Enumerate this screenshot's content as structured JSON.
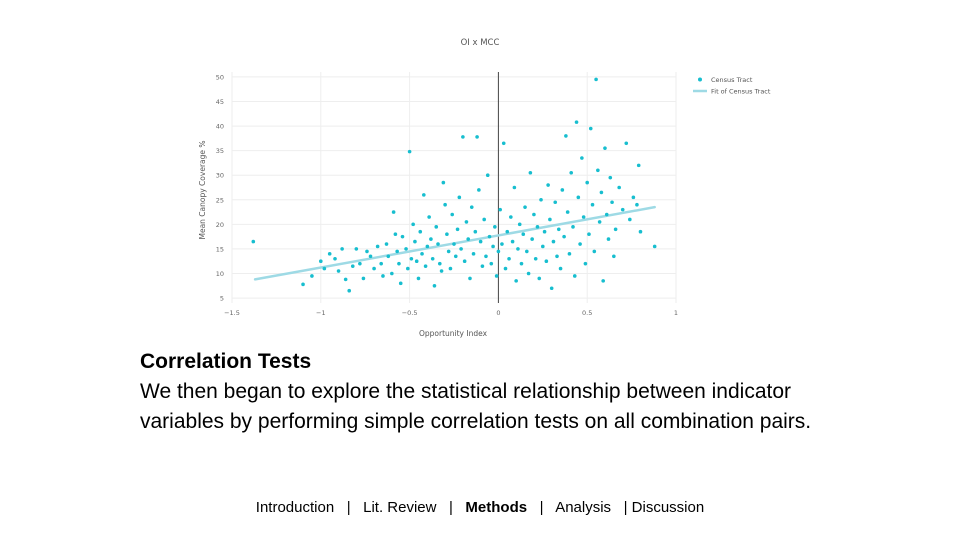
{
  "chart_data": {
    "type": "scatter",
    "title": "OI x MCC",
    "xlabel": "Opportunity Index",
    "ylabel": "Mean Canopy Coverage %",
    "xlim": [
      -1.5,
      1
    ],
    "ylim": [
      4,
      51
    ],
    "x_ticks": [
      "−1.5",
      "−1",
      "−0.5",
      "0",
      "0.5",
      "1"
    ],
    "x_tick_values": [
      -1.5,
      -1,
      -0.5,
      0,
      0.5,
      1
    ],
    "y_ticks": [
      "5",
      "10",
      "15",
      "20",
      "25",
      "30",
      "35",
      "40",
      "45",
      "50"
    ],
    "y_tick_values": [
      5,
      10,
      15,
      20,
      25,
      30,
      35,
      40,
      45,
      50
    ],
    "grid": true,
    "legend_position": "top-right",
    "series": [
      {
        "name": "Census Tract",
        "kind": "scatter",
        "color": "#17becf",
        "points": [
          [
            -1.38,
            16.5
          ],
          [
            -1.1,
            7.8
          ],
          [
            -1.05,
            9.5
          ],
          [
            -1.0,
            12.5
          ],
          [
            -0.98,
            11.0
          ],
          [
            -0.95,
            14.0
          ],
          [
            -0.92,
            13.0
          ],
          [
            -0.9,
            10.5
          ],
          [
            -0.88,
            15.0
          ],
          [
            -0.86,
            8.8
          ],
          [
            -0.84,
            6.5
          ],
          [
            -0.82,
            11.5
          ],
          [
            -0.8,
            15.0
          ],
          [
            -0.78,
            12.0
          ],
          [
            -0.76,
            9.0
          ],
          [
            -0.74,
            14.5
          ],
          [
            -0.72,
            13.5
          ],
          [
            -0.7,
            11.0
          ],
          [
            -0.68,
            15.5
          ],
          [
            -0.66,
            12.0
          ],
          [
            -0.65,
            9.5
          ],
          [
            -0.63,
            16.0
          ],
          [
            -0.62,
            13.5
          ],
          [
            -0.6,
            10.0
          ],
          [
            -0.59,
            22.5
          ],
          [
            -0.58,
            18.0
          ],
          [
            -0.57,
            14.5
          ],
          [
            -0.56,
            12.0
          ],
          [
            -0.55,
            8.0
          ],
          [
            -0.54,
            17.5
          ],
          [
            -0.52,
            15.0
          ],
          [
            -0.51,
            11.0
          ],
          [
            -0.5,
            34.8
          ],
          [
            -0.49,
            13.0
          ],
          [
            -0.48,
            20.0
          ],
          [
            -0.47,
            16.5
          ],
          [
            -0.46,
            12.5
          ],
          [
            -0.45,
            9.0
          ],
          [
            -0.44,
            18.5
          ],
          [
            -0.43,
            14.0
          ],
          [
            -0.42,
            26.0
          ],
          [
            -0.41,
            11.5
          ],
          [
            -0.4,
            15.5
          ],
          [
            -0.39,
            21.5
          ],
          [
            -0.38,
            17.0
          ],
          [
            -0.37,
            13.0
          ],
          [
            -0.36,
            7.5
          ],
          [
            -0.35,
            19.5
          ],
          [
            -0.34,
            16.0
          ],
          [
            -0.33,
            12.0
          ],
          [
            -0.32,
            10.5
          ],
          [
            -0.31,
            28.5
          ],
          [
            -0.3,
            24.0
          ],
          [
            -0.29,
            18.0
          ],
          [
            -0.28,
            14.5
          ],
          [
            -0.27,
            11.0
          ],
          [
            -0.26,
            22.0
          ],
          [
            -0.25,
            16.0
          ],
          [
            -0.24,
            13.5
          ],
          [
            -0.23,
            19.0
          ],
          [
            -0.22,
            25.5
          ],
          [
            -0.21,
            15.0
          ],
          [
            -0.2,
            37.8
          ],
          [
            -0.19,
            12.5
          ],
          [
            -0.18,
            20.5
          ],
          [
            -0.17,
            17.0
          ],
          [
            -0.16,
            9.0
          ],
          [
            -0.15,
            23.5
          ],
          [
            -0.14,
            14.0
          ],
          [
            -0.13,
            18.5
          ],
          [
            -0.12,
            37.8
          ],
          [
            -0.11,
            27.0
          ],
          [
            -0.1,
            16.5
          ],
          [
            -0.09,
            11.5
          ],
          [
            -0.08,
            21.0
          ],
          [
            -0.07,
            13.5
          ],
          [
            -0.06,
            30.0
          ],
          [
            -0.05,
            17.5
          ],
          [
            -0.04,
            12.0
          ],
          [
            -0.03,
            15.5
          ],
          [
            -0.02,
            19.5
          ],
          [
            -0.01,
            9.5
          ],
          [
            0.0,
            14.5
          ],
          [
            0.01,
            23.0
          ],
          [
            0.02,
            16.0
          ],
          [
            0.03,
            36.5
          ],
          [
            0.04,
            11.0
          ],
          [
            0.05,
            18.5
          ],
          [
            0.06,
            13.0
          ],
          [
            0.07,
            21.5
          ],
          [
            0.08,
            16.5
          ],
          [
            0.09,
            27.5
          ],
          [
            0.1,
            8.5
          ],
          [
            0.11,
            15.0
          ],
          [
            0.12,
            20.0
          ],
          [
            0.13,
            12.0
          ],
          [
            0.14,
            18.0
          ],
          [
            0.15,
            23.5
          ],
          [
            0.16,
            14.5
          ],
          [
            0.17,
            10.0
          ],
          [
            0.18,
            30.5
          ],
          [
            0.19,
            17.0
          ],
          [
            0.2,
            22.0
          ],
          [
            0.21,
            13.0
          ],
          [
            0.22,
            19.5
          ],
          [
            0.23,
            9.0
          ],
          [
            0.24,
            25.0
          ],
          [
            0.25,
            15.5
          ],
          [
            0.26,
            18.5
          ],
          [
            0.27,
            12.5
          ],
          [
            0.28,
            28.0
          ],
          [
            0.29,
            21.0
          ],
          [
            0.3,
            7.0
          ],
          [
            0.31,
            16.5
          ],
          [
            0.32,
            24.5
          ],
          [
            0.33,
            13.5
          ],
          [
            0.34,
            19.0
          ],
          [
            0.35,
            11.0
          ],
          [
            0.36,
            27.0
          ],
          [
            0.37,
            17.5
          ],
          [
            0.38,
            38.0
          ],
          [
            0.39,
            22.5
          ],
          [
            0.4,
            14.0
          ],
          [
            0.41,
            30.5
          ],
          [
            0.42,
            19.5
          ],
          [
            0.43,
            9.5
          ],
          [
            0.44,
            40.8
          ],
          [
            0.45,
            25.5
          ],
          [
            0.46,
            16.0
          ],
          [
            0.47,
            33.5
          ],
          [
            0.48,
            21.5
          ],
          [
            0.49,
            12.0
          ],
          [
            0.5,
            28.5
          ],
          [
            0.51,
            18.0
          ],
          [
            0.52,
            39.5
          ],
          [
            0.53,
            24.0
          ],
          [
            0.54,
            14.5
          ],
          [
            0.55,
            49.5
          ],
          [
            0.56,
            31.0
          ],
          [
            0.57,
            20.5
          ],
          [
            0.58,
            26.5
          ],
          [
            0.59,
            8.5
          ],
          [
            0.6,
            35.5
          ],
          [
            0.61,
            22.0
          ],
          [
            0.62,
            17.0
          ],
          [
            0.63,
            29.5
          ],
          [
            0.64,
            24.5
          ],
          [
            0.65,
            13.5
          ],
          [
            0.66,
            19.0
          ],
          [
            0.68,
            27.5
          ],
          [
            0.7,
            23.0
          ],
          [
            0.72,
            36.5
          ],
          [
            0.74,
            21.0
          ],
          [
            0.76,
            25.5
          ],
          [
            0.78,
            24.0
          ],
          [
            0.79,
            32.0
          ],
          [
            0.8,
            18.5
          ],
          [
            0.88,
            15.5
          ]
        ]
      },
      {
        "name": "Fit of Census Tract",
        "kind": "line",
        "color": "#9edae5",
        "points": [
          [
            -1.37,
            8.8
          ],
          [
            0.88,
            23.5
          ]
        ]
      }
    ]
  },
  "slide": {
    "title": "Correlation Tests",
    "body": "We then began to explore the statistical relationship between indicator variables by performing simple correlation tests on all combination pairs."
  },
  "footer": {
    "items": [
      "Introduction",
      "Lit. Review",
      "Methods",
      "Analysis",
      "Discussion"
    ],
    "active": "Methods",
    "separator": "|"
  }
}
